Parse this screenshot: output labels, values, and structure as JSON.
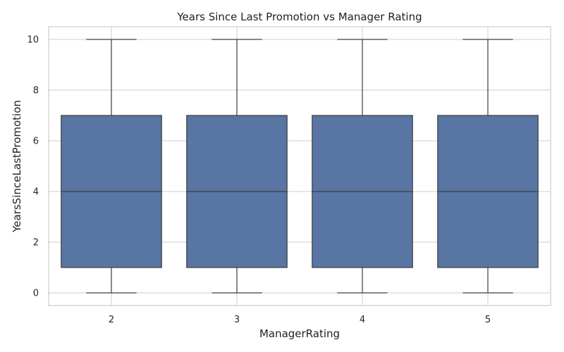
{
  "chart_data": {
    "type": "box",
    "title": "Years Since Last Promotion vs Manager Rating",
    "xlabel": "ManagerRating",
    "ylabel": "YearsSinceLastPromotion",
    "ylim": [
      -0.5,
      10.5
    ],
    "yticks": [
      0,
      2,
      4,
      6,
      8,
      10
    ],
    "grid": true,
    "box_color": "#5875a4",
    "line_color": "#3d3d3d",
    "categories": [
      "2",
      "3",
      "4",
      "5"
    ],
    "boxes": [
      {
        "category": "2",
        "min": 0,
        "q1": 1,
        "median": 4,
        "q3": 7,
        "max": 10
      },
      {
        "category": "3",
        "min": 0,
        "q1": 1,
        "median": 4,
        "q3": 7,
        "max": 10
      },
      {
        "category": "4",
        "min": 0,
        "q1": 1,
        "median": 4,
        "q3": 7,
        "max": 10
      },
      {
        "category": "5",
        "min": 0,
        "q1": 1,
        "median": 4,
        "q3": 7,
        "max": 10
      }
    ]
  }
}
